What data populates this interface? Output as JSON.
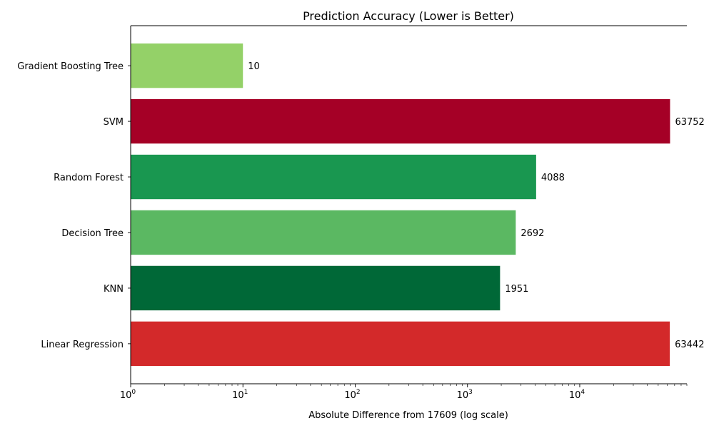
{
  "chart_data": {
    "type": "bar",
    "orientation": "horizontal",
    "title": "Prediction Accuracy (Lower is Better)",
    "xlabel": "Absolute Difference from 17609 (log scale)",
    "ylabel": "",
    "x_scale": "log",
    "xlim": [
      1,
      90000
    ],
    "x_ticks": [
      {
        "value": 1,
        "base": "10",
        "exp": "0"
      },
      {
        "value": 10,
        "base": "10",
        "exp": "1"
      },
      {
        "value": 100,
        "base": "10",
        "exp": "2"
      },
      {
        "value": 1000,
        "base": "10",
        "exp": "3"
      },
      {
        "value": 10000,
        "base": "10",
        "exp": "4"
      }
    ],
    "grid": false,
    "categories": [
      "Gradient Boosting Tree",
      "SVM",
      "Random Forest",
      "Decision Tree",
      "KNN",
      "Linear Regression"
    ],
    "values": [
      10,
      63752,
      4088,
      2692,
      1951,
      63442
    ],
    "value_labels": [
      "10",
      "63752",
      "4088",
      "2692",
      "1951",
      "63442"
    ],
    "colors": [
      "#94d168",
      "#a50026",
      "#199750",
      "#5bb862",
      "#006837",
      "#d3292a"
    ]
  }
}
